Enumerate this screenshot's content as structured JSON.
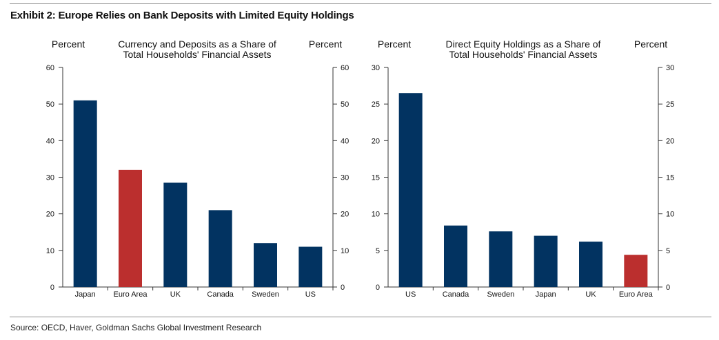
{
  "title": "Exhibit 2: Europe Relies on Bank Deposits with Limited Equity Holdings",
  "source": "Source: OECD, Haver, Goldman Sachs Global Investment Research",
  "colors": {
    "navy": "#023361",
    "red": "#bb2f2e",
    "axis": "#333333"
  },
  "chart_data": [
    {
      "type": "bar",
      "title": [
        "Currency and Deposits as a Share of",
        "Total Households' Financial Assets"
      ],
      "ylabel_left": "Percent",
      "ylabel_right": "Percent",
      "categories": [
        "Japan",
        "Euro Area",
        "UK",
        "Canada",
        "Sweden",
        "US"
      ],
      "values": [
        51,
        32,
        28.5,
        21,
        12,
        11
      ],
      "highlight": "Euro Area",
      "ylim": [
        0,
        60
      ],
      "yticks": [
        0,
        10,
        20,
        30,
        40,
        50,
        60
      ],
      "grid": false
    },
    {
      "type": "bar",
      "title": [
        "Direct Equity Holdings as a Share of",
        "Total Households' Financial Assets"
      ],
      "ylabel_left": "Percent",
      "ylabel_right": "Percent",
      "categories": [
        "US",
        "Canada",
        "Sweden",
        "Japan",
        "UK",
        "Euro Area"
      ],
      "values": [
        26.5,
        8.4,
        7.6,
        7.0,
        6.2,
        4.4
      ],
      "highlight": "Euro Area",
      "ylim": [
        0,
        30
      ],
      "yticks": [
        0,
        5,
        10,
        15,
        20,
        25,
        30
      ],
      "grid": false
    }
  ]
}
